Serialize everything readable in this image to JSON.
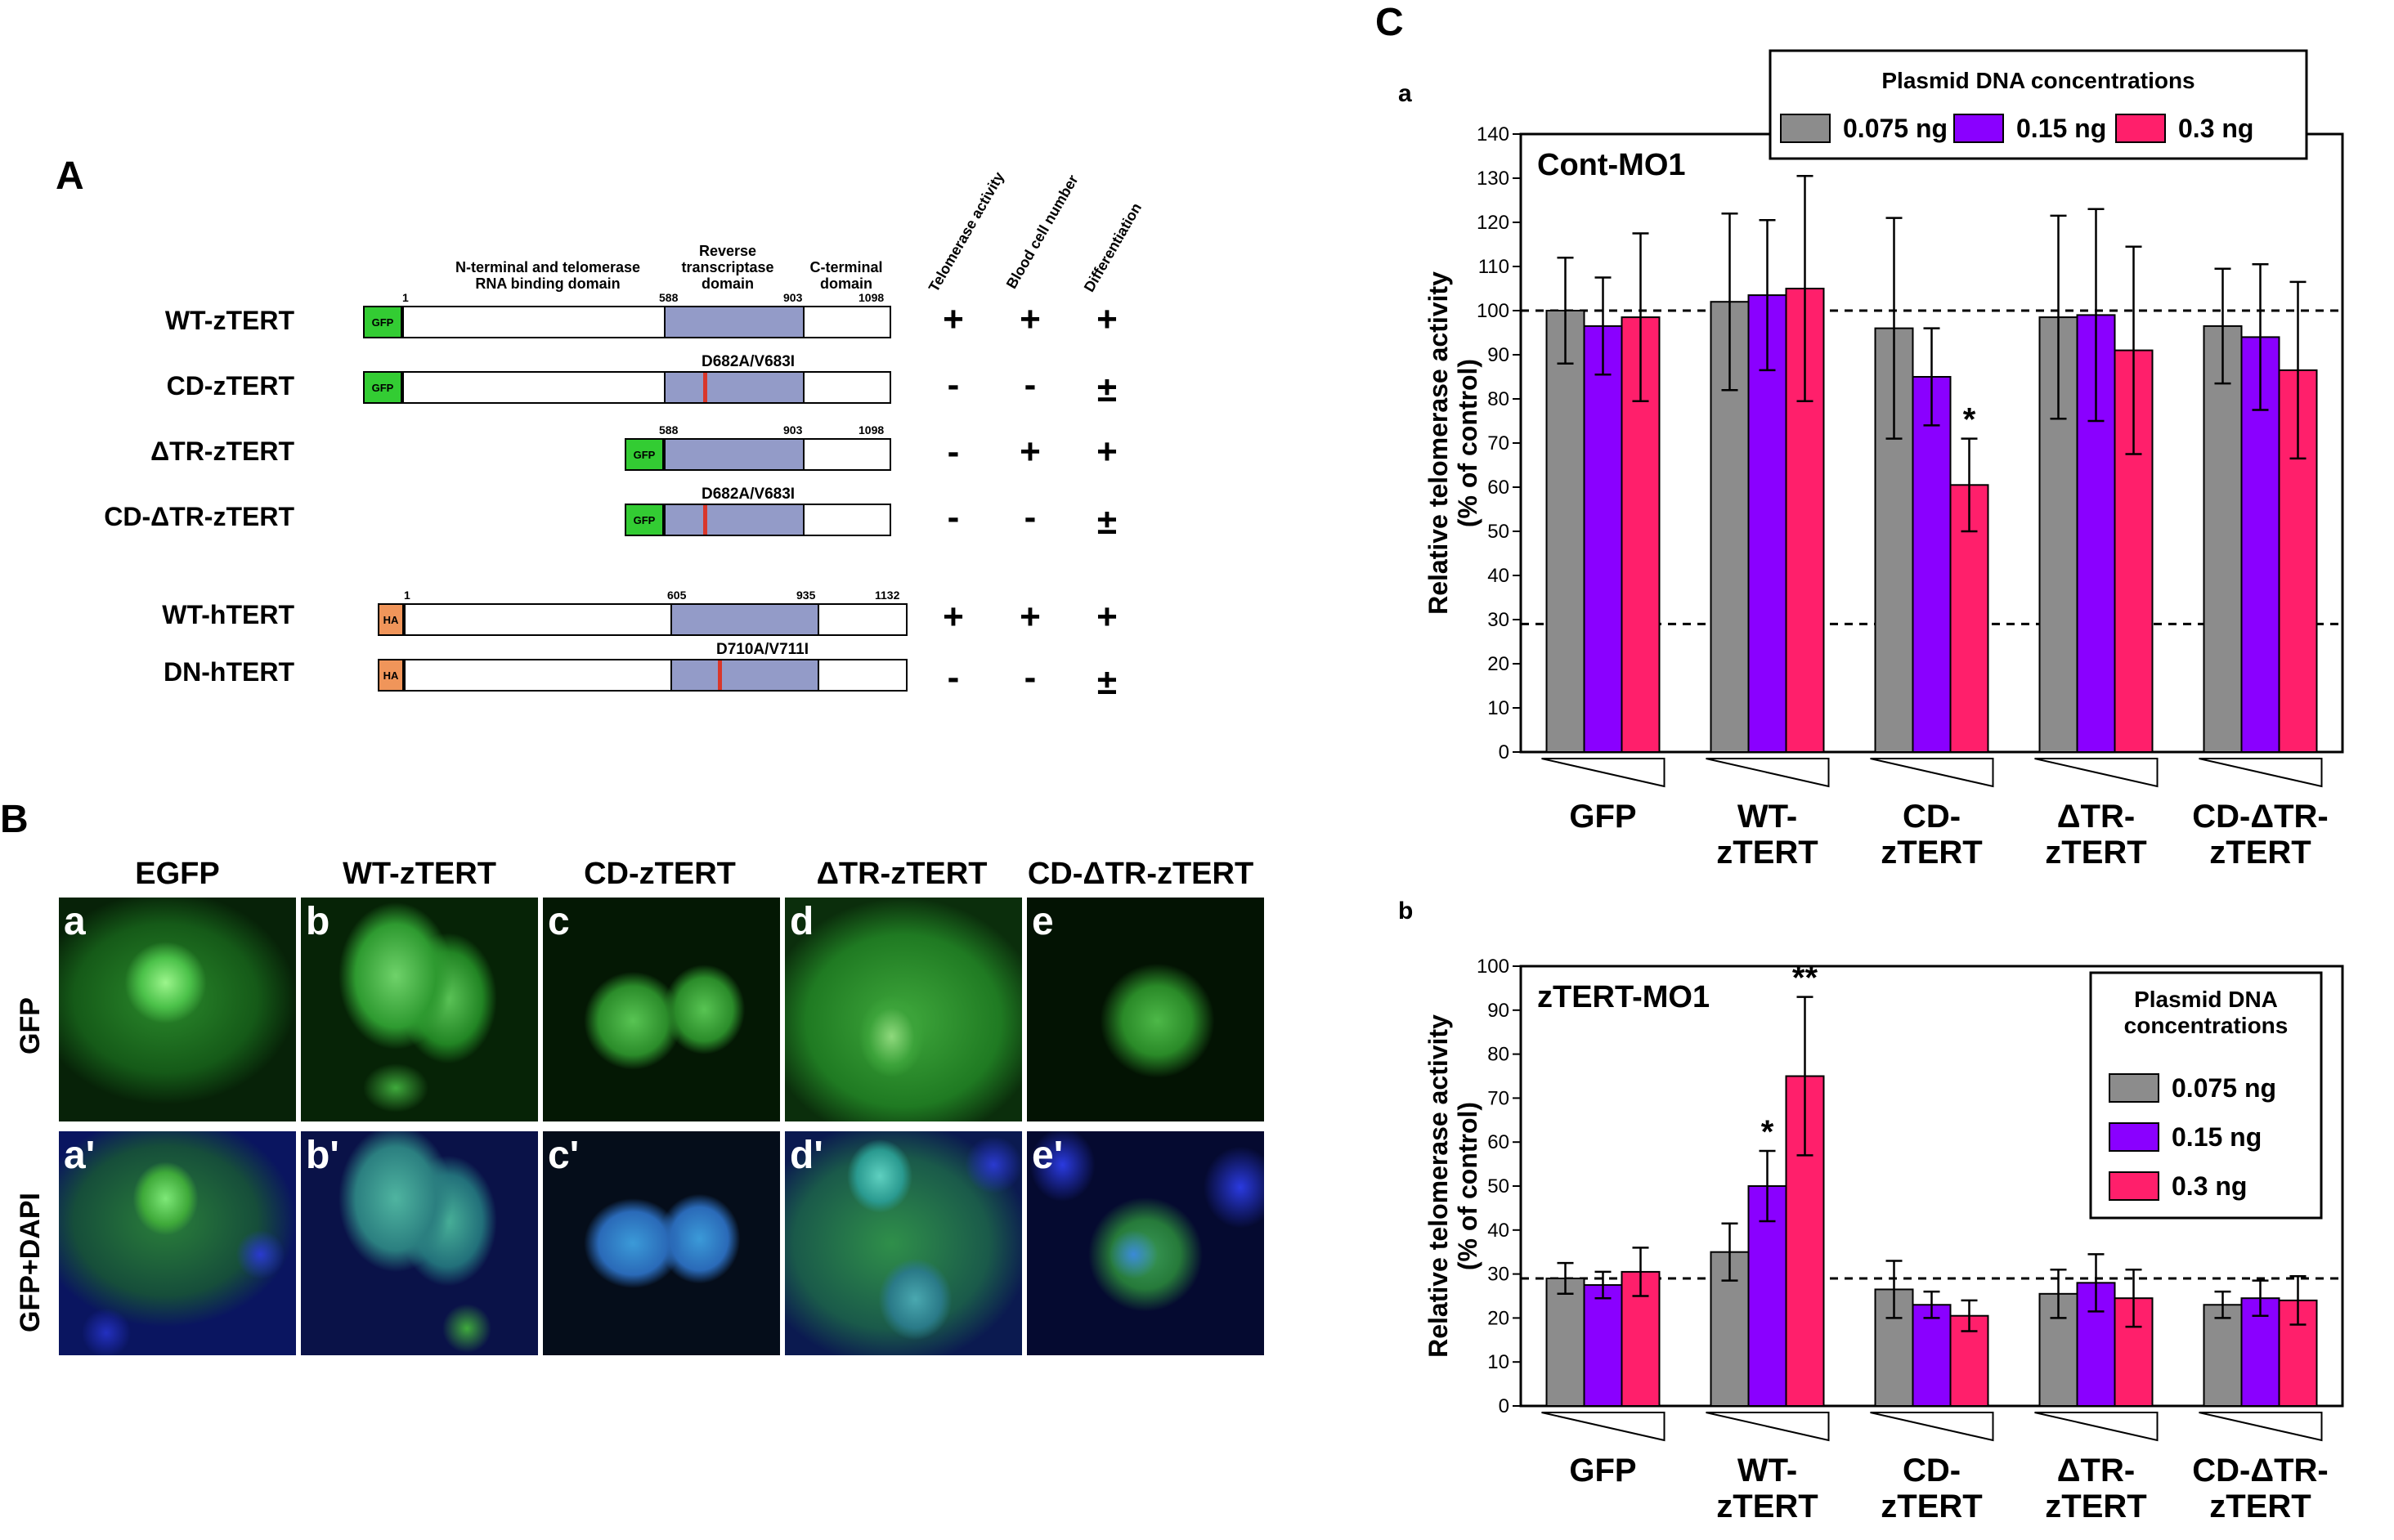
{
  "panelA": {
    "letter": "A",
    "domain_labels": {
      "n_term": "N-terminal and telomerase\nRNA binding domain",
      "rt": "Reverse\ntranscriptase\ndomain",
      "c_term": "C-terminal\ndomain"
    },
    "column_headers": [
      "Telomerase activity",
      "Blood cell number",
      "Differentiation"
    ],
    "constructs": [
      {
        "name": "WT-zTERT",
        "tag": "GFP",
        "positions": [
          "1",
          "588",
          "903",
          "1098"
        ],
        "mutation": "",
        "results": [
          "+",
          "+",
          "+"
        ]
      },
      {
        "name": "CD-zTERT",
        "tag": "GFP",
        "positions": [],
        "mutation": "D682A/V683I",
        "results": [
          "-",
          "-",
          "±"
        ]
      },
      {
        "name": "ΔTR-zTERT",
        "tag": "GFP",
        "positions": [
          "588",
          "903",
          "1098"
        ],
        "mutation": "",
        "results": [
          "-",
          "+",
          "+"
        ]
      },
      {
        "name": "CD-ΔTR-zTERT",
        "tag": "GFP",
        "positions": [],
        "mutation": "D682A/V683I",
        "results": [
          "-",
          "-",
          "±"
        ]
      },
      {
        "name": "WT-hTERT",
        "tag": "HA",
        "positions": [
          "1",
          "605",
          "935",
          "1132"
        ],
        "mutation": "",
        "results": [
          "+",
          "+",
          "+"
        ]
      },
      {
        "name": "DN-hTERT",
        "tag": "HA",
        "positions": [],
        "mutation": "D710A/V711I",
        "results": [
          "-",
          "-",
          "±"
        ]
      }
    ],
    "colors": {
      "gfp_tag": "#33cc33",
      "ha_tag": "#f0955a",
      "rt_domain": "#939bc8",
      "mutation_mark": "#d9372b"
    }
  },
  "panelB": {
    "letter": "B",
    "columns": [
      "EGFP",
      "WT-zTERT",
      "CD-zTERT",
      "ΔTR-zTERT",
      "CD-ΔTR-zTERT"
    ],
    "row_labels": [
      "GFP",
      "GFP+DAPI"
    ],
    "top_letters": [
      "a",
      "b",
      "c",
      "d",
      "e"
    ],
    "bottom_letters": [
      "a'",
      "b'",
      "c'",
      "d'",
      "e'"
    ]
  },
  "panelC": {
    "letter": "C",
    "legend_title": "Plasmid DNA concentrations",
    "legend_title_b": "Plasmid DNA\nconcentrations",
    "series_names": [
      "0.075 ng",
      "0.15 ng",
      "0.3 ng"
    ],
    "series_colors": [
      "#8c8c8c",
      "#8a00ff",
      "#ff1f6b"
    ],
    "ylabel": "Relative telomerase activity\n(% of control)",
    "categories": [
      "GFP",
      "WT-\nzTERT",
      "CD-\nzTERT",
      "ΔTR-\nzTERT",
      "CD-ΔTR-\nzTERT"
    ],
    "sub_a": "a",
    "sub_b": "b"
  },
  "chart_data": [
    {
      "type": "bar",
      "title": "Cont-MO1",
      "ylabel": "Relative telomerase activity (% of control)",
      "categories": [
        "GFP",
        "WT-zTERT",
        "CD-zTERT",
        "ΔTR-zTERT",
        "CD-ΔTR-zTERT"
      ],
      "ylim": [
        0,
        140
      ],
      "yticks": [
        0,
        10,
        20,
        30,
        40,
        50,
        60,
        70,
        80,
        90,
        100,
        110,
        120,
        130,
        140
      ],
      "reference_lines": [
        100,
        29
      ],
      "legend_position": "top-right",
      "series": [
        {
          "name": "0.075 ng",
          "values": [
            100,
            102,
            96,
            98.5,
            96.5
          ],
          "errors": [
            12,
            20,
            25,
            23,
            13
          ]
        },
        {
          "name": "0.15 ng",
          "values": [
            96.5,
            103.5,
            85,
            99,
            94
          ],
          "errors": [
            11,
            17,
            11,
            24,
            16.5
          ]
        },
        {
          "name": "0.3 ng",
          "values": [
            98.5,
            105,
            60.5,
            91,
            86.5
          ],
          "errors": [
            19,
            25.5,
            10.5,
            23.5,
            20
          ]
        }
      ],
      "annotations": [
        {
          "category": "CD-zTERT",
          "series": "0.3 ng",
          "text": "*"
        }
      ]
    },
    {
      "type": "bar",
      "title": "zTERT-MO1",
      "ylabel": "Relative telomerase activity (% of control)",
      "categories": [
        "GFP",
        "WT-zTERT",
        "CD-zTERT",
        "ΔTR-zTERT",
        "CD-ΔTR-zTERT"
      ],
      "ylim": [
        0,
        100
      ],
      "yticks": [
        0,
        10,
        20,
        30,
        40,
        50,
        60,
        70,
        80,
        90,
        100
      ],
      "reference_lines": [
        29
      ],
      "legend_position": "top-right",
      "series": [
        {
          "name": "0.075 ng",
          "values": [
            29,
            35,
            26.5,
            25.5,
            23
          ],
          "errors": [
            3.5,
            6.5,
            6.5,
            5.5,
            3
          ]
        },
        {
          "name": "0.15 ng",
          "values": [
            27.5,
            50,
            23,
            28,
            24.5
          ],
          "errors": [
            3,
            8,
            3,
            6.5,
            4
          ]
        },
        {
          "name": "0.3 ng",
          "values": [
            30.5,
            75,
            20.5,
            24.5,
            24
          ],
          "errors": [
            5.5,
            18,
            3.5,
            6.5,
            5.5
          ]
        }
      ],
      "annotations": [
        {
          "category": "WT-zTERT",
          "series": "0.15 ng",
          "text": "*"
        },
        {
          "category": "WT-zTERT",
          "series": "0.3 ng",
          "text": "**"
        }
      ]
    }
  ]
}
